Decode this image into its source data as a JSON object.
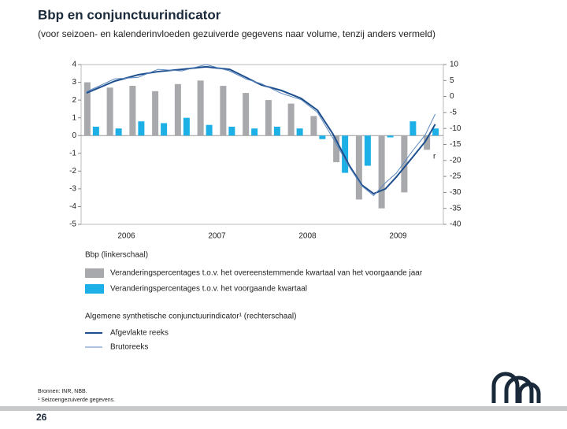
{
  "title": "Bbp en conjunctuurindicator",
  "subtitle": "(voor seizoen- en kalenderinvloeden gezuiverde gegevens naar volume, tenzij anders vermeld)",
  "chart_data": {
    "type": "bar",
    "xlim": [
      2006,
      2010
    ],
    "xticks": [
      {
        "value": 2006.5,
        "label": "2006"
      },
      {
        "value": 2007.5,
        "label": "2007"
      },
      {
        "value": 2008.5,
        "label": "2008"
      },
      {
        "value": 2009.5,
        "label": "2009"
      }
    ],
    "ylim": [
      -5,
      4
    ],
    "yticks": [
      -5,
      -4,
      -3,
      -2,
      -1,
      0,
      1,
      2,
      3,
      4
    ],
    "y2lim": [
      -40,
      10
    ],
    "y2ticks": [
      -40,
      -35,
      -30,
      -25,
      -20,
      -15,
      -10,
      -5,
      0,
      5,
      10
    ],
    "bar_x": [
      2006.125,
      2006.375,
      2006.625,
      2006.875,
      2007.125,
      2007.375,
      2007.625,
      2007.875,
      2008.125,
      2008.375,
      2008.625,
      2008.875,
      2009.125,
      2009.375,
      2009.625,
      2009.875
    ],
    "legend_groups": [
      "Bbp (linkerschaal)",
      "Algemene synthetische conjunctuurindicator¹ (rechterschaal)"
    ],
    "series": [
      {
        "name": "Veranderingspercentages t.o.v. het overeenstemmende kwartaal van het voorgaande jaar",
        "type": "bar",
        "color": "#a7a9ac",
        "values": [
          3.0,
          2.7,
          2.8,
          2.5,
          2.9,
          3.1,
          2.8,
          2.4,
          2.0,
          1.8,
          1.1,
          -1.5,
          -3.6,
          -4.1,
          -3.2,
          -0.8
        ]
      },
      {
        "name": "Veranderingspercentages t.o.v. het voorgaande kwartaal",
        "type": "bar",
        "color": "#1cb0e6",
        "values": [
          0.5,
          0.4,
          0.8,
          0.7,
          1.0,
          0.6,
          0.5,
          0.4,
          0.5,
          0.4,
          -0.2,
          -2.1,
          -1.7,
          -0.1,
          0.8,
          0.4
        ]
      },
      {
        "name": "Afgevlakte reeks",
        "type": "line",
        "axis": "y2",
        "color": "#1d4f8e",
        "width": 2,
        "x": [
          2006.06,
          2006.37,
          2006.63,
          2006.85,
          2007.11,
          2007.38,
          2007.64,
          2007.82,
          2007.99,
          2008.21,
          2008.43,
          2008.61,
          2008.78,
          2008.96,
          2009.1,
          2009.23,
          2009.36,
          2009.48,
          2009.66,
          2009.8,
          2009.91
        ],
        "values": [
          1.1,
          4.8,
          6.8,
          7.8,
          8.5,
          9.3,
          8.5,
          6,
          3.6,
          1.9,
          -0.6,
          -4.3,
          -11.7,
          -21.5,
          -27.7,
          -30.4,
          -28.9,
          -25.2,
          -19,
          -14.1,
          -8.7
        ]
      },
      {
        "name": "Brutoreeks",
        "type": "line",
        "axis": "y2",
        "color": "#5a86bd",
        "width": 1,
        "x": [
          2006.06,
          2006.37,
          2006.63,
          2006.85,
          2007.11,
          2007.38,
          2007.64,
          2007.82,
          2007.99,
          2008.21,
          2008.43,
          2008.61,
          2008.78,
          2008.96,
          2009.1,
          2009.23,
          2009.36,
          2009.48,
          2009.66,
          2009.8,
          2009.91
        ],
        "values": [
          1.5,
          5.5,
          6,
          8.5,
          8,
          10,
          8,
          5.5,
          4,
          1,
          -1,
          -5,
          -13,
          -22,
          -28,
          -31,
          -27,
          -24,
          -17,
          -12,
          -5.5
        ]
      }
    ],
    "annotation": "r"
  },
  "footer": {
    "sources": "Bronnen: INR, NBB.",
    "footnote": "¹ Seizoengezuiverde gegevens.",
    "page": "26"
  }
}
